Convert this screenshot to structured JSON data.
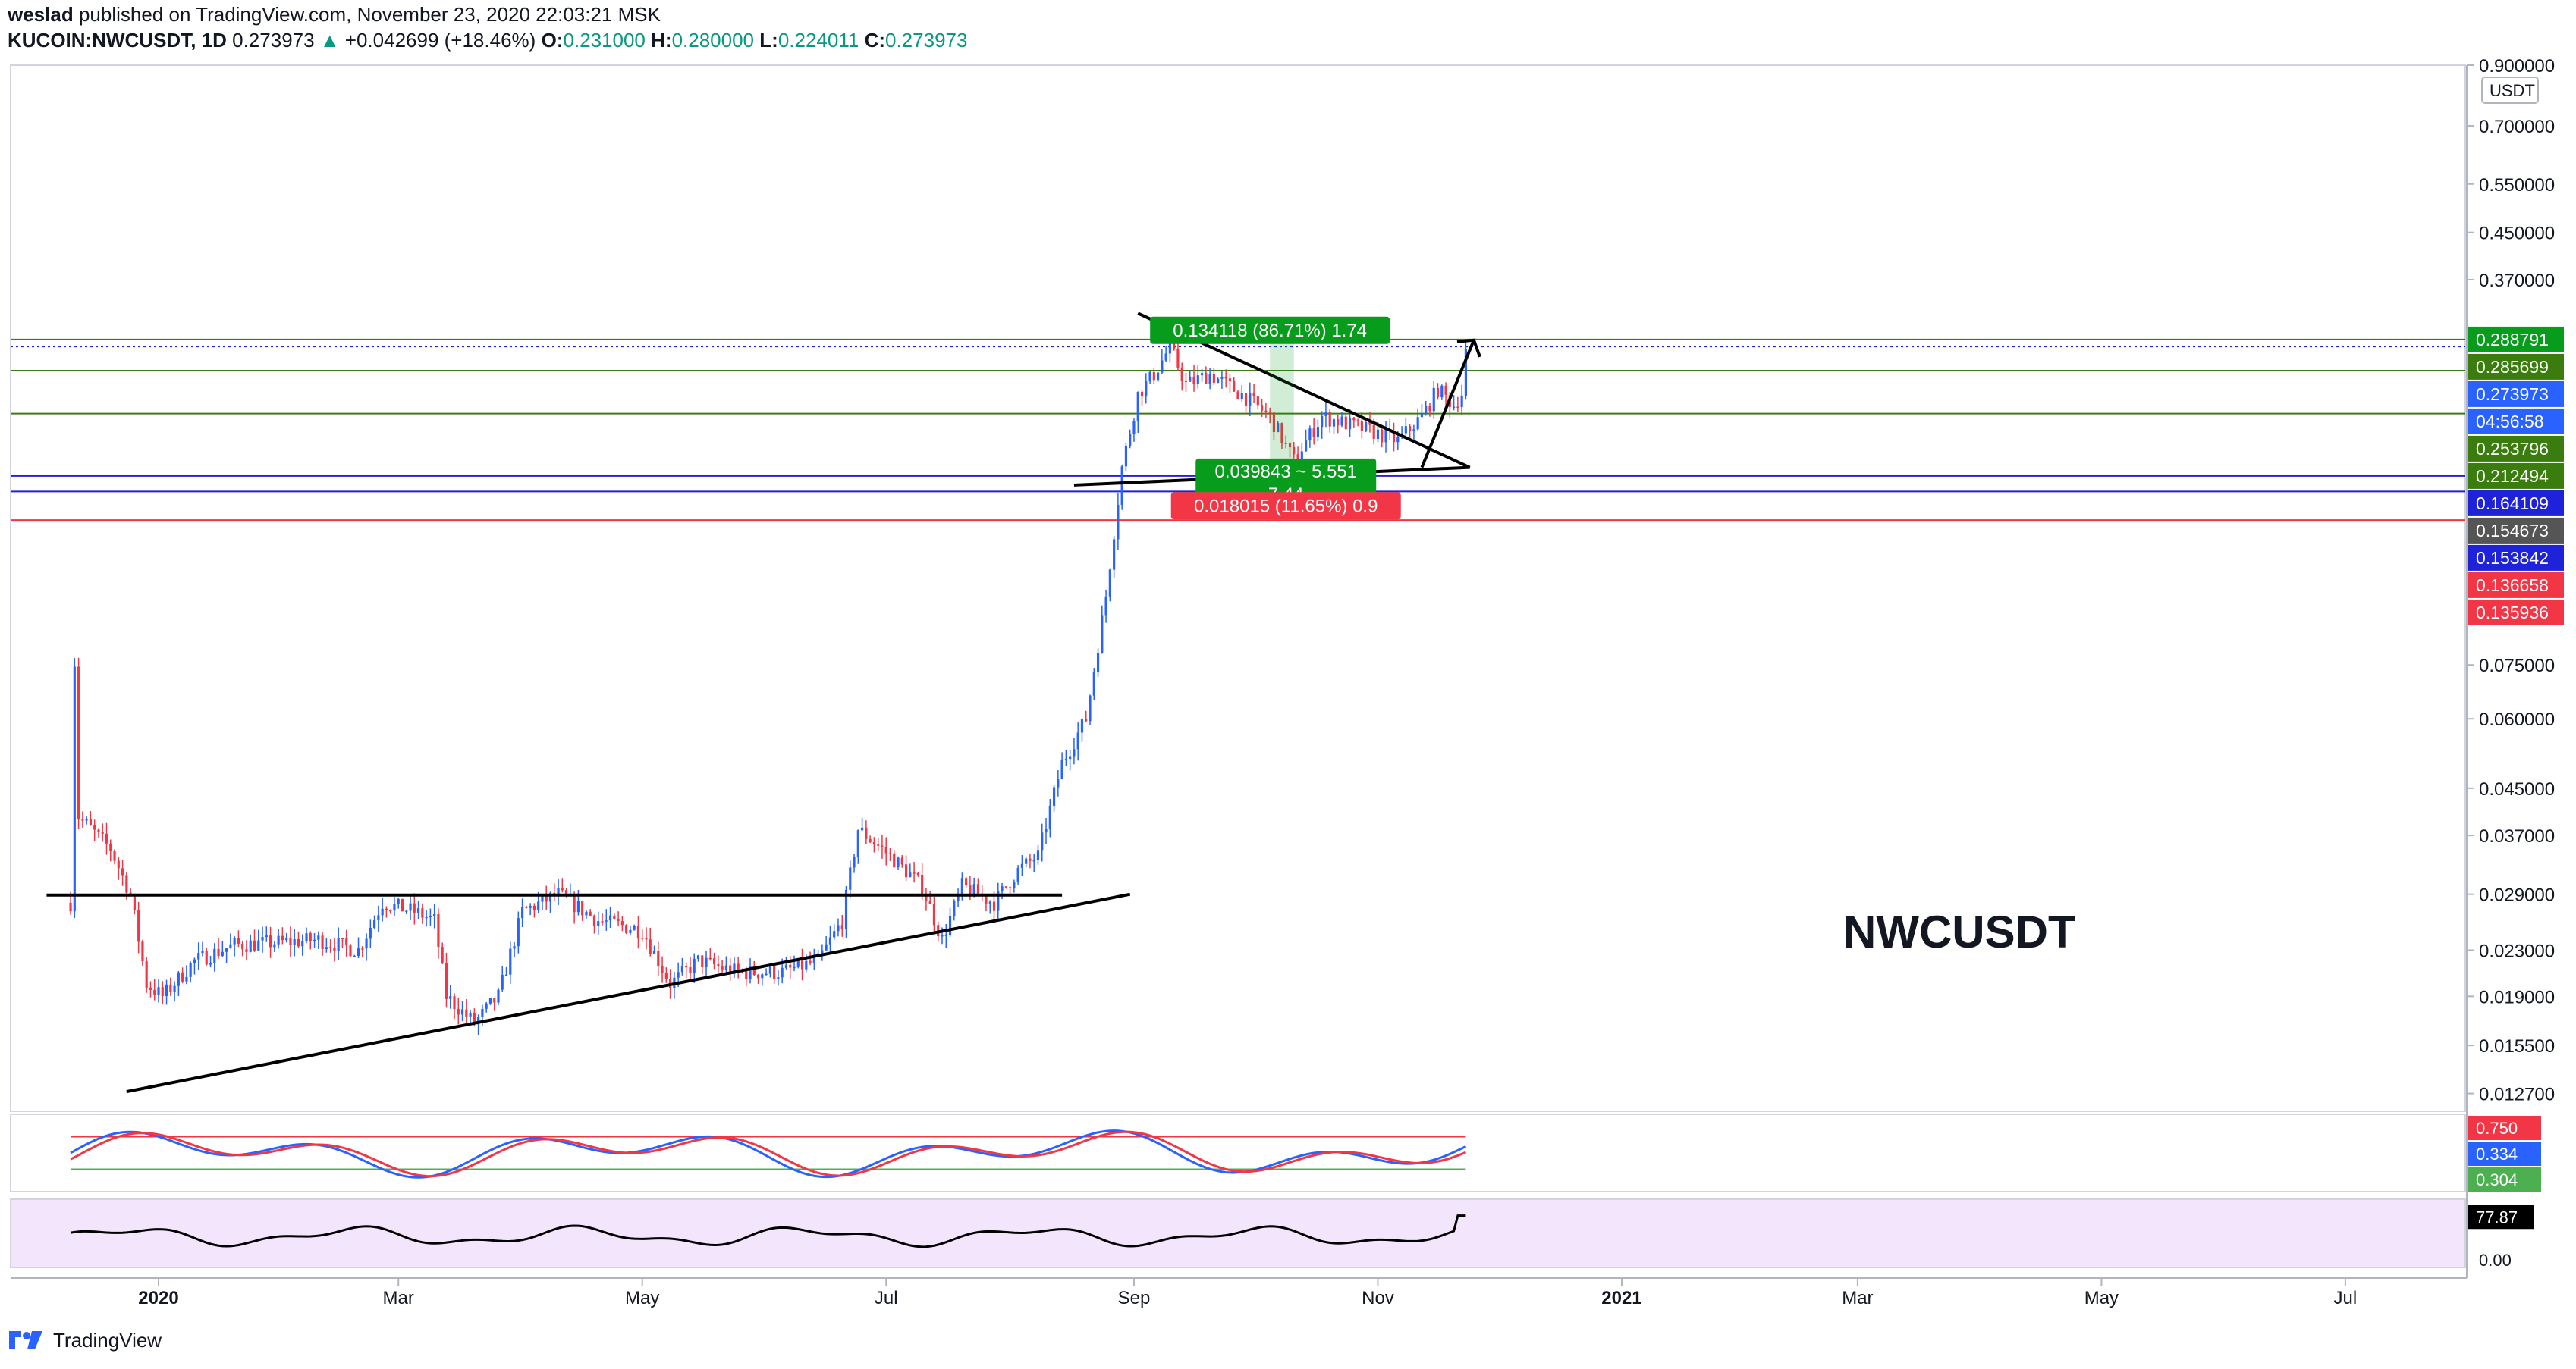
{
  "header": {
    "author": "weslad",
    "published_text": "published on TradingView.com, November 23, 2020 22:03:21 MSK",
    "symbol": "KUCOIN:NWCUSDT, 1D",
    "last": "0.273973",
    "change_arrow": "▲",
    "change": "+0.042699 (+18.46%)",
    "open_label": "O:",
    "open": "0.231000",
    "high_label": "H:",
    "high": "0.280000",
    "low_label": "L:",
    "low": "0.224011",
    "close_label": "C:",
    "close": "0.273973"
  },
  "watermark": "NWCUSDT",
  "footer": {
    "brand": "TradingView",
    "icon": "tradingview-logo-icon"
  },
  "colors": {
    "up": "#2962ff",
    "down": "#f23645",
    "green_box": "#089c1c",
    "red_box": "#f23645",
    "blue_line": "#1e22d8",
    "green_line": "#3a7d0e",
    "red_line": "#f23645",
    "rsi_bg": "#f3e5fc"
  },
  "chart_data": {
    "type": "candlestick",
    "scale": "log",
    "currency_label": "USDT",
    "ylim": [
      0.0118,
      0.9
    ],
    "x_start": "2019-11-25",
    "x_end": "2021-07-31",
    "x_ticks": [
      {
        "label": "2020",
        "date": "2020-01-01",
        "bold": true
      },
      {
        "label": "Mar",
        "date": "2020-03-01"
      },
      {
        "label": "May",
        "date": "2020-05-01"
      },
      {
        "label": "Jul",
        "date": "2020-07-01"
      },
      {
        "label": "Sep",
        "date": "2020-09-01"
      },
      {
        "label": "Nov",
        "date": "2020-11-01"
      },
      {
        "label": "2021",
        "date": "2021-01-01",
        "bold": true
      },
      {
        "label": "Mar",
        "date": "2021-03-01"
      },
      {
        "label": "May",
        "date": "2021-05-01"
      },
      {
        "label": "Jul",
        "date": "2021-07-01"
      }
    ],
    "y_ticks": [
      "0.900000",
      "0.700000",
      "0.550000",
      "0.450000",
      "0.370000",
      "0.075000",
      "0.060000",
      "0.045000",
      "0.037000",
      "0.029000",
      "0.023000",
      "0.019000",
      "0.015500",
      "0.012700"
    ],
    "price_tags": [
      {
        "text": "0.288791",
        "value": 0.288791,
        "color": "#089c1c"
      },
      {
        "text": "0.285699",
        "value": 0.285699,
        "color": "#3a7d0e"
      },
      {
        "text": "0.273973",
        "value": 0.273973,
        "color": "#2962ff"
      },
      {
        "text": "04:56:58",
        "value": 0.2625,
        "color": "#2962ff"
      },
      {
        "text": "0.253796",
        "value": 0.253796,
        "color": "#3a7d0e"
      },
      {
        "text": "0.212494",
        "value": 0.212494,
        "color": "#3a7d0e"
      },
      {
        "text": "0.164109",
        "value": 0.164109,
        "color": "#1e22d8"
      },
      {
        "text": "0.154673",
        "value": 0.154673,
        "color": "#555555"
      },
      {
        "text": "0.153842",
        "value": 0.153842,
        "color": "#1e22d8"
      },
      {
        "text": "0.136658",
        "value": 0.136658,
        "color": "#f23645"
      },
      {
        "text": "0.135936",
        "value": 0.135936,
        "color": "#f23645"
      }
    ],
    "horizontal_lines": [
      {
        "value": 0.288791,
        "color": "#3a7d0e"
      },
      {
        "value": 0.2805,
        "color": "#1e22d8",
        "dotted": true
      },
      {
        "value": 0.253796,
        "color": "#3a7d0e"
      },
      {
        "value": 0.212494,
        "color": "#3a7d0e"
      },
      {
        "value": 0.164109,
        "color": "#1e22d8"
      },
      {
        "value": 0.153842,
        "color": "#1e22d8"
      },
      {
        "value": 0.136658,
        "color": "#f23645"
      }
    ],
    "anchors": [
      {
        "date": "2019-12-10",
        "price": 0.028
      },
      {
        "date": "2019-12-11",
        "price": 0.076
      },
      {
        "date": "2019-12-12",
        "price": 0.04
      },
      {
        "date": "2019-12-20",
        "price": 0.035
      },
      {
        "date": "2019-12-25",
        "price": 0.029
      },
      {
        "date": "2019-12-29",
        "price": 0.02
      },
      {
        "date": "2020-01-02",
        "price": 0.019
      },
      {
        "date": "2020-01-10",
        "price": 0.022
      },
      {
        "date": "2020-01-20",
        "price": 0.0235
      },
      {
        "date": "2020-02-10",
        "price": 0.024
      },
      {
        "date": "2020-02-20",
        "price": 0.023
      },
      {
        "date": "2020-02-26",
        "price": 0.028
      },
      {
        "date": "2020-03-05",
        "price": 0.027
      },
      {
        "date": "2020-03-10",
        "price": 0.026
      },
      {
        "date": "2020-03-13",
        "price": 0.019
      },
      {
        "date": "2020-03-20",
        "price": 0.017
      },
      {
        "date": "2020-03-26",
        "price": 0.019
      },
      {
        "date": "2020-04-01",
        "price": 0.027
      },
      {
        "date": "2020-04-10",
        "price": 0.029
      },
      {
        "date": "2020-04-20",
        "price": 0.026
      },
      {
        "date": "2020-05-01",
        "price": 0.025
      },
      {
        "date": "2020-05-08",
        "price": 0.02
      },
      {
        "date": "2020-05-15",
        "price": 0.022
      },
      {
        "date": "2020-05-25",
        "price": 0.021
      },
      {
        "date": "2020-06-05",
        "price": 0.021
      },
      {
        "date": "2020-06-14",
        "price": 0.022
      },
      {
        "date": "2020-06-20",
        "price": 0.026
      },
      {
        "date": "2020-06-24",
        "price": 0.038
      },
      {
        "date": "2020-07-02",
        "price": 0.034
      },
      {
        "date": "2020-07-10",
        "price": 0.03
      },
      {
        "date": "2020-07-15",
        "price": 0.024
      },
      {
        "date": "2020-07-20",
        "price": 0.03
      },
      {
        "date": "2020-07-28",
        "price": 0.028
      },
      {
        "date": "2020-08-03",
        "price": 0.032
      },
      {
        "date": "2020-08-08",
        "price": 0.034
      },
      {
        "date": "2020-08-14",
        "price": 0.05
      },
      {
        "date": "2020-08-20",
        "price": 0.06
      },
      {
        "date": "2020-08-25",
        "price": 0.1
      },
      {
        "date": "2020-08-29",
        "price": 0.17
      },
      {
        "date": "2020-09-02",
        "price": 0.23
      },
      {
        "date": "2020-09-06",
        "price": 0.25
      },
      {
        "date": "2020-09-10",
        "price": 0.28
      },
      {
        "date": "2020-09-14",
        "price": 0.24
      },
      {
        "date": "2020-09-20",
        "price": 0.25
      },
      {
        "date": "2020-09-28",
        "price": 0.23
      },
      {
        "date": "2020-10-05",
        "price": 0.21
      },
      {
        "date": "2020-10-11",
        "price": 0.175
      },
      {
        "date": "2020-10-18",
        "price": 0.21
      },
      {
        "date": "2020-10-28",
        "price": 0.2
      },
      {
        "date": "2020-11-06",
        "price": 0.19
      },
      {
        "date": "2020-11-12",
        "price": 0.21
      },
      {
        "date": "2020-11-16",
        "price": 0.235
      },
      {
        "date": "2020-11-20",
        "price": 0.22
      },
      {
        "date": "2020-11-22",
        "price": 0.231
      },
      {
        "date": "2020-11-23",
        "price": 0.274
      }
    ],
    "trendlines": [
      {
        "from": [
          "2019-12-04",
          0.0289
        ],
        "to": [
          "2020-08-14",
          0.0289
        ]
      },
      {
        "from": [
          "2019-12-24",
          0.0128
        ],
        "to": [
          "2020-08-31",
          0.029
        ]
      },
      {
        "from": [
          "2020-09-02",
          0.322
        ],
        "to": [
          "2020-11-24",
          0.17
        ]
      },
      {
        "from": [
          "2020-08-17",
          0.158
        ],
        "to": [
          "2020-11-24",
          0.17
        ]
      },
      {
        "from": [
          "2020-11-12",
          0.17
        ],
        "to": [
          "2020-11-25",
          0.288
        ]
      }
    ],
    "annotations": [
      {
        "text": "0.134118 (86.71%) 1.74",
        "color": "#089c1c",
        "date": "2020-10-05",
        "price": 0.3
      },
      {
        "text": "0.039843 ~ 5.551",
        "text2": "7.44",
        "color": "#089c1c",
        "date": "2020-10-09",
        "price": 0.16
      },
      {
        "text": "0.018015 (11.65%) 0.9",
        "color": "#f23645",
        "date": "2020-10-09",
        "price": 0.145
      }
    ],
    "oscillator": {
      "name": "Stochastic RSI",
      "ticks": [
        "0.750",
        "0.334",
        "0.304"
      ],
      "tag_colors": [
        "#f23645",
        "#2962ff",
        "#4caf50"
      ]
    },
    "rsi": {
      "name": "RSI",
      "value_text": "77.87",
      "zero_text": "0.00",
      "last_value": 77.87
    }
  }
}
